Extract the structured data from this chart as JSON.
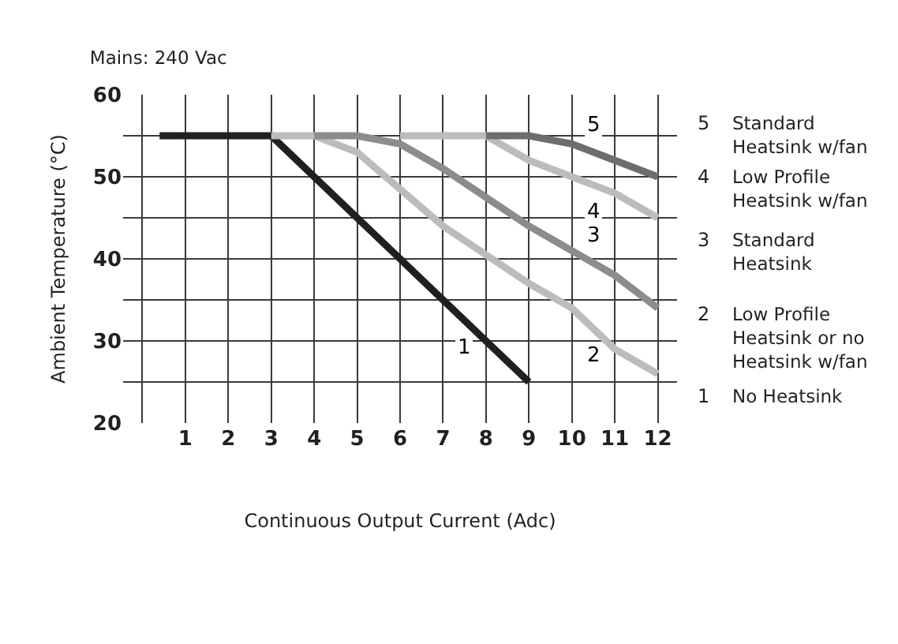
{
  "chart_data": {
    "type": "line",
    "title": "Mains: 240 Vac",
    "xlabel": "Continuous Output Current (Adc)",
    "ylabel": "Ambient Temperature (°C)",
    "series": [
      {
        "name": "1",
        "color": "#231f20",
        "x": [
          0.4,
          3,
          9
        ],
        "values": [
          55,
          55,
          25
        ]
      },
      {
        "name": "2",
        "color": "#bcbcbc",
        "x": [
          3,
          4,
          5,
          6,
          7,
          8,
          9,
          10,
          11,
          12
        ],
        "values": [
          55,
          55,
          53,
          48.5,
          44,
          40.5,
          37,
          34,
          29,
          26
        ]
      },
      {
        "name": "3",
        "color": "#8c8c8c",
        "x": [
          4,
          5,
          6,
          7,
          8,
          9,
          10,
          11,
          12
        ],
        "values": [
          55,
          55,
          54,
          51,
          47.5,
          44,
          41,
          38,
          34
        ]
      },
      {
        "name": "4",
        "color": "#bcbcbc",
        "x": [
          6,
          7,
          8,
          9,
          10,
          11,
          12
        ],
        "values": [
          55,
          55,
          55,
          52,
          50,
          48,
          45
        ]
      },
      {
        "name": "5",
        "color": "#6d6d6d",
        "x": [
          8,
          9,
          10,
          12
        ],
        "values": [
          55,
          55,
          54,
          50
        ]
      }
    ],
    "xlim": [
      -0.45,
      12.45
    ],
    "xticks": [
      {
        "value": 0,
        "label": null
      },
      1,
      2,
      3,
      4,
      5,
      6,
      7,
      8,
      9,
      10,
      11,
      12
    ],
    "ylim": [
      20,
      60
    ],
    "yticks": [
      20,
      {
        "value": 25,
        "label": null
      },
      30,
      {
        "value": 35,
        "label": null
      },
      40,
      {
        "value": 45,
        "label": null
      },
      50,
      {
        "value": 55,
        "label": null
      },
      60
    ],
    "grid": true,
    "marker": "none",
    "line_style": "solid",
    "legend": false,
    "annotations": [
      "5",
      "Standard Heatsink w/fan",
      "4",
      "Low Profile Heatsink w/fan",
      "3",
      "Standard Heatsink",
      "2",
      "Low Profile Heatsink or no Heatsink w/fan",
      "1",
      "No Heatsink"
    ]
  }
}
